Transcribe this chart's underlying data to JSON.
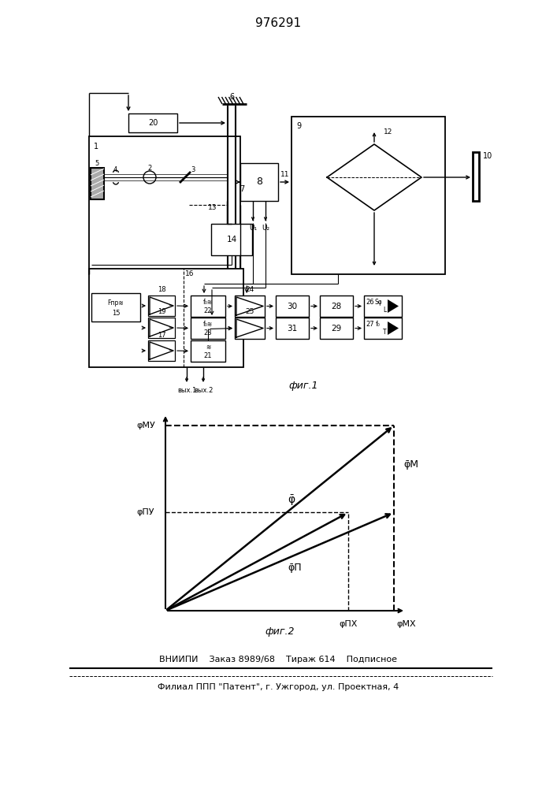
{
  "title": "976291",
  "fig1_label": "фиг.1",
  "fig2_label": "фиг.2",
  "footer_line1": "ВНИИПИ    Заказ 8989/68    Тираж 614    Подписное",
  "footer_line2": "Филиал ППП \"Патент\", г. Ужгород, ул. Проектная, 4"
}
